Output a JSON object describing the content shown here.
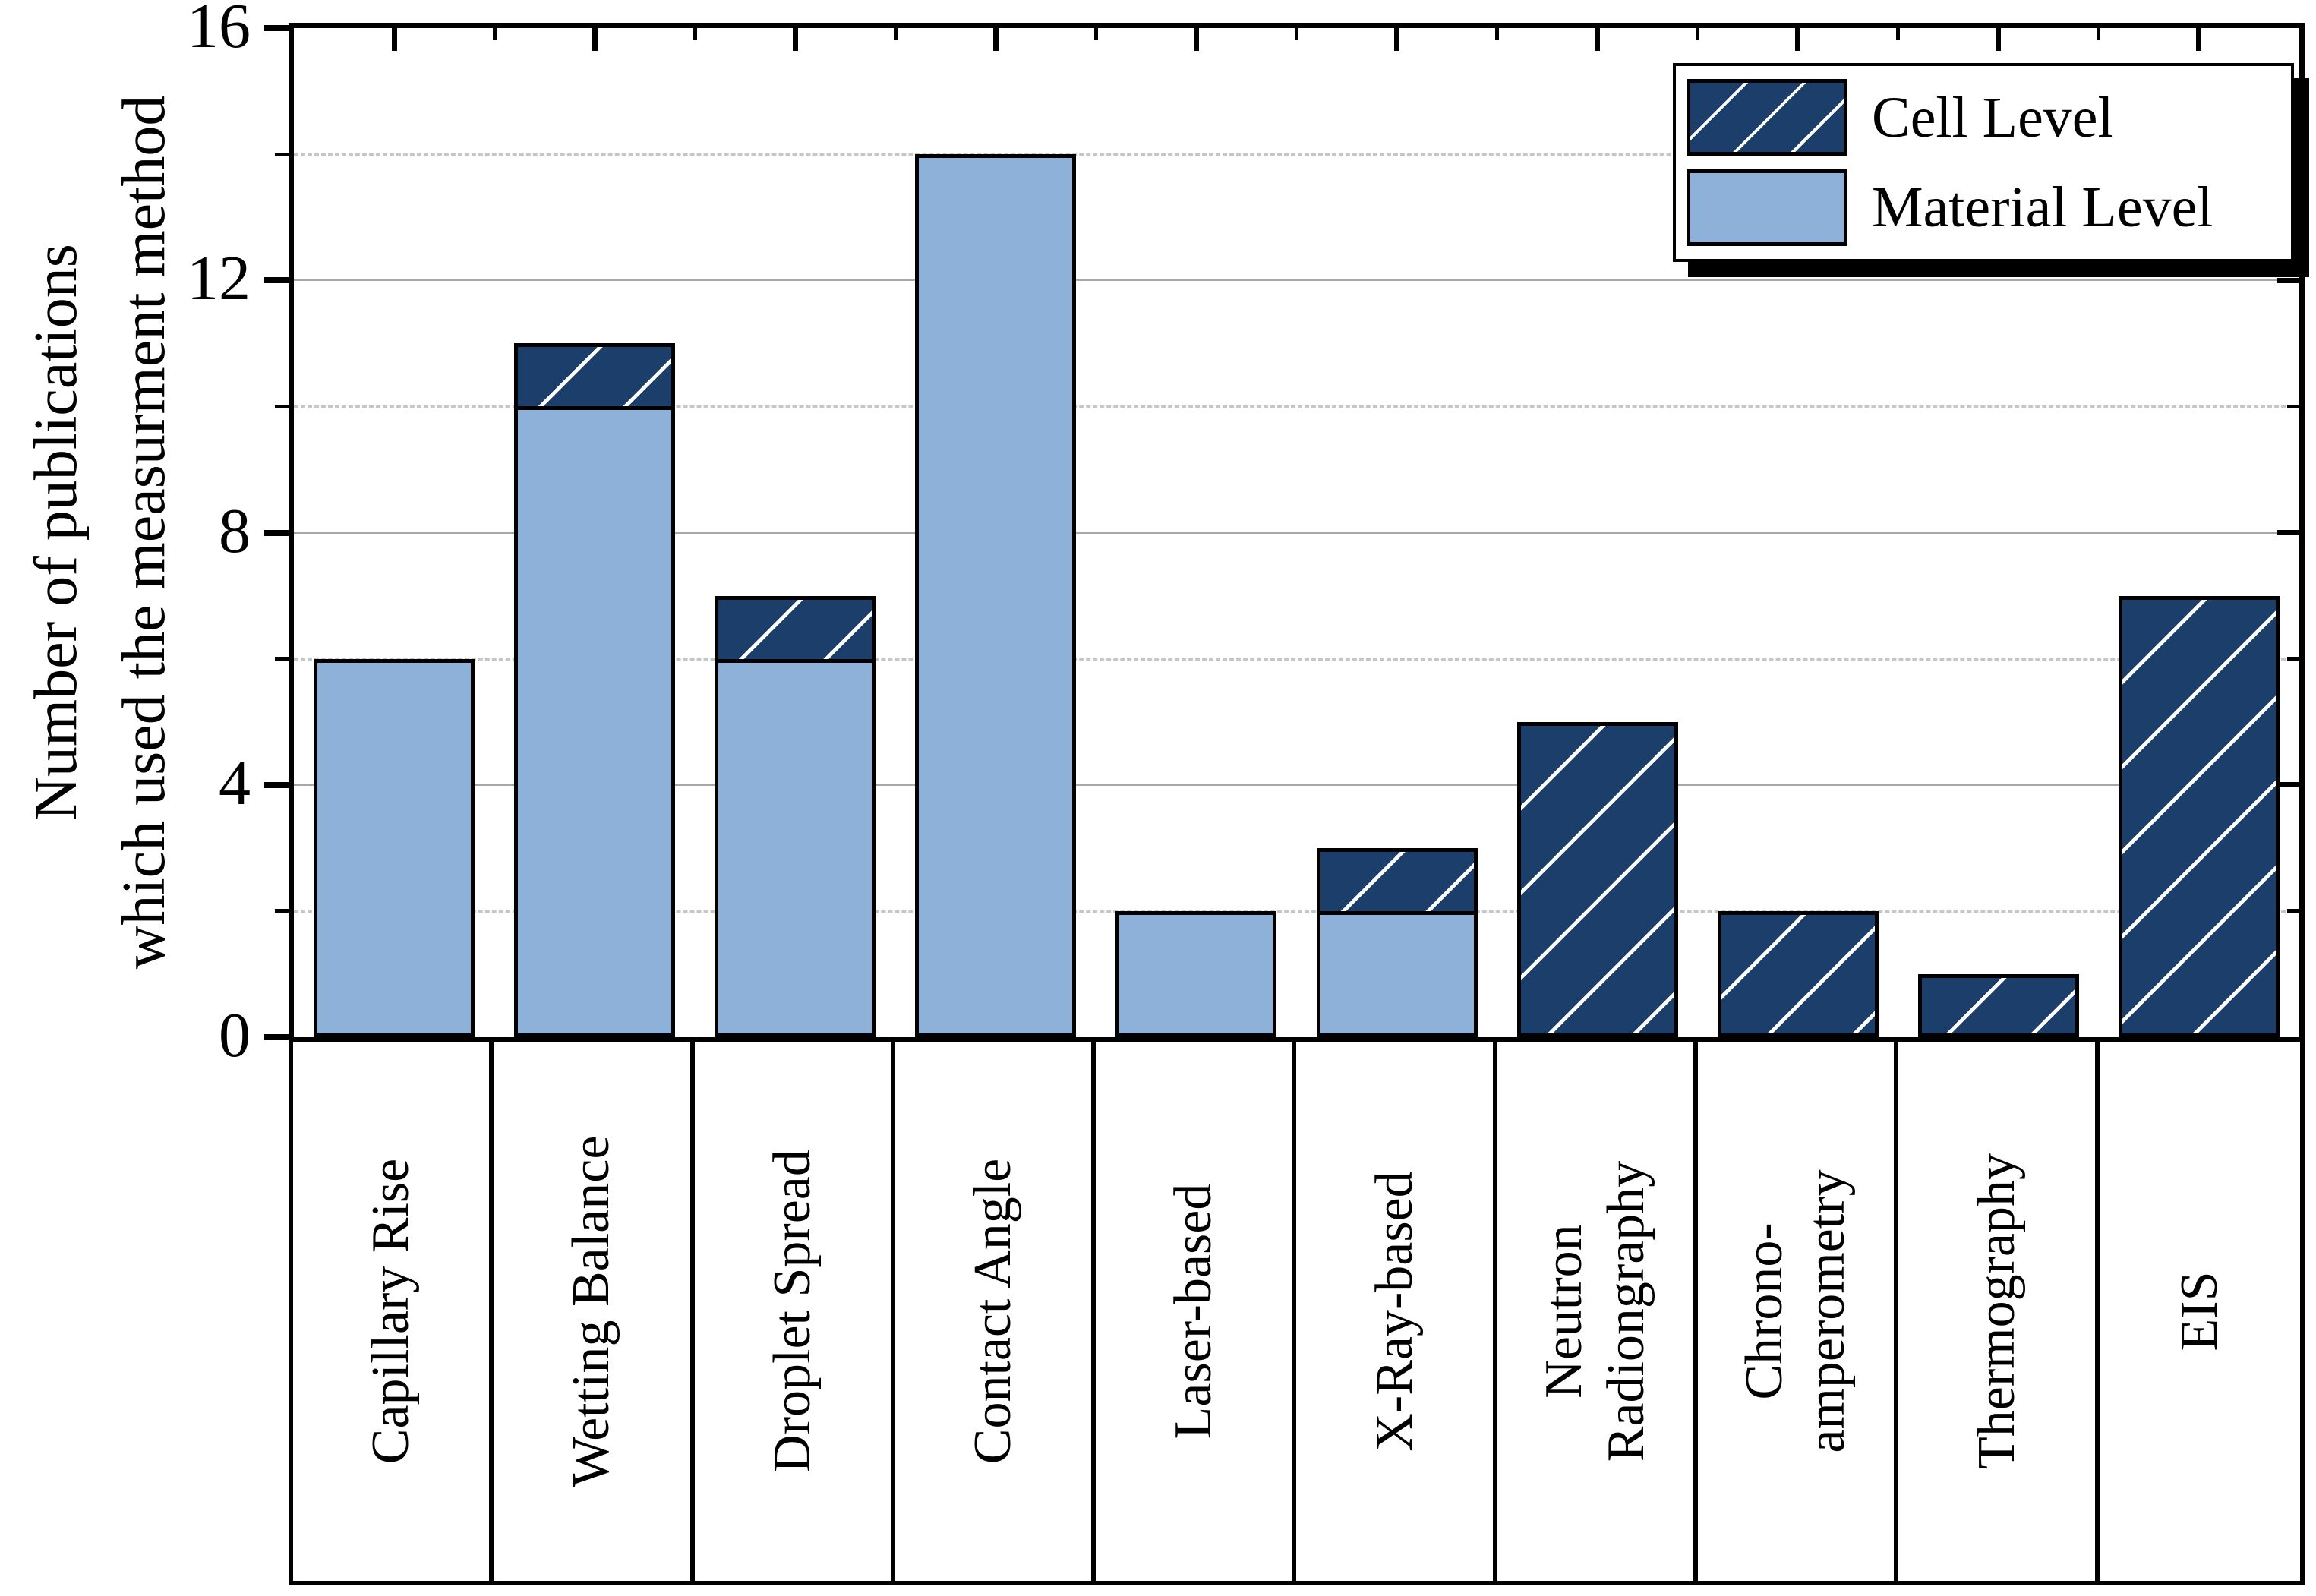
{
  "chart_data": {
    "type": "bar",
    "stacked": true,
    "title": "",
    "ylabel_lines": [
      "Number of publications",
      "which used the measurment method"
    ],
    "categories": [
      "Capillary Rise",
      "Wetting Balance",
      "Droplet Spread",
      "Contact Angle",
      "Laser-based",
      "X-Ray-based",
      "Neutron\nRadiongraphy",
      "Chrono-\namperometry",
      "Thermography",
      "EIS"
    ],
    "series": [
      {
        "name": "Material Level",
        "color": "#8DB1D9",
        "hatch": false,
        "values": [
          6,
          10,
          6,
          14,
          2,
          2,
          0,
          0,
          0,
          0
        ]
      },
      {
        "name": "Cell Level",
        "color": "#1C3E6B",
        "hatch": true,
        "values": [
          0,
          1,
          1,
          0,
          0,
          1,
          5,
          2,
          1,
          7
        ]
      }
    ],
    "totals": [
      6,
      11,
      7,
      14,
      2,
      3,
      5,
      2,
      1,
      7
    ],
    "ylim": [
      0,
      16
    ],
    "yticks_major": [
      0,
      4,
      8,
      12,
      16
    ],
    "yticks_minor": [
      2,
      6,
      10,
      14
    ],
    "gridlines_solid": [
      4,
      8,
      12
    ],
    "gridlines_dashed": [
      2,
      6,
      10,
      14
    ],
    "grid_on": true,
    "legend": {
      "position": "top-right",
      "items": [
        "Cell Level",
        "Material Level"
      ]
    },
    "colors": {
      "cell_level": "#1C3E6B",
      "material_level": "#8DB1D9",
      "hatch_line": "#FFFFFF",
      "grid_solid": "#A8A8A8",
      "grid_dashed": "#C6C6C6",
      "axis": "#000000",
      "legend_shadow": "#000000"
    }
  }
}
